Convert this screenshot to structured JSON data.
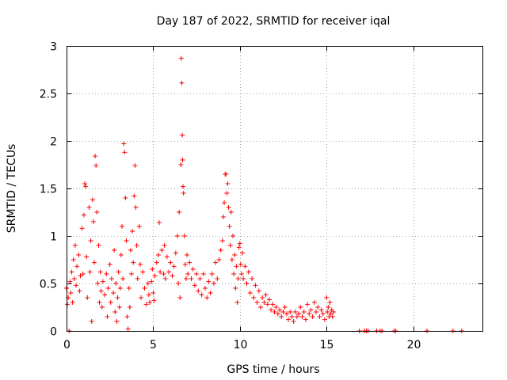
{
  "chart_data": {
    "type": "scatter",
    "title": "Day 187 of 2022, SRMTID for receiver iqal",
    "xlabel": "GPS time / hours",
    "ylabel": "SRMTID / TECUs",
    "xlim": [
      0,
      24
    ],
    "ylim": [
      0,
      3
    ],
    "xticks": [
      0,
      5,
      10,
      15,
      20
    ],
    "xtick_labels": [
      "0",
      "5",
      "10",
      "15",
      "20"
    ],
    "yticks": [
      0,
      0.5,
      1,
      1.5,
      2,
      2.5,
      3
    ],
    "ytick_labels": [
      "0",
      "0.5",
      "1",
      "1.5",
      "2",
      "2.5",
      "3"
    ],
    "grid": true,
    "legend": "none",
    "marker": "+",
    "color": "#ff0000",
    "series": [
      {
        "name": "SRMTID",
        "points": [
          [
            0.0,
            0.45
          ],
          [
            0.05,
            0.28
          ],
          [
            0.1,
            0.35
          ],
          [
            0.15,
            0.0
          ],
          [
            0.2,
            0.52
          ],
          [
            0.25,
            0.4
          ],
          [
            0.3,
            0.62
          ],
          [
            0.35,
            0.3
          ],
          [
            0.4,
            0.75
          ],
          [
            0.45,
            0.55
          ],
          [
            0.5,
            0.9
          ],
          [
            0.55,
            0.48
          ],
          [
            0.6,
            0.68
          ],
          [
            0.7,
            0.8
          ],
          [
            0.75,
            0.42
          ],
          [
            0.8,
            0.58
          ],
          [
            0.9,
            1.08
          ],
          [
            0.95,
            0.6
          ],
          [
            1.0,
            1.22
          ],
          [
            1.05,
            1.55
          ],
          [
            1.1,
            1.52
          ],
          [
            1.15,
            0.78
          ],
          [
            1.2,
            0.35
          ],
          [
            1.3,
            1.3
          ],
          [
            1.35,
            0.62
          ],
          [
            1.4,
            0.95
          ],
          [
            1.45,
            0.1
          ],
          [
            1.5,
            1.38
          ],
          [
            1.55,
            1.15
          ],
          [
            1.6,
            0.72
          ],
          [
            1.65,
            1.84
          ],
          [
            1.7,
            1.74
          ],
          [
            1.75,
            1.25
          ],
          [
            1.8,
            0.5
          ],
          [
            1.85,
            0.9
          ],
          [
            1.9,
            0.3
          ],
          [
            1.95,
            0.62
          ],
          [
            2.0,
            0.42
          ],
          [
            2.05,
            0.25
          ],
          [
            2.1,
            0.52
          ],
          [
            2.2,
            0.38
          ],
          [
            2.3,
            0.6
          ],
          [
            2.35,
            0.15
          ],
          [
            2.4,
            0.45
          ],
          [
            2.5,
            0.7
          ],
          [
            2.55,
            0.3
          ],
          [
            2.6,
            0.55
          ],
          [
            2.7,
            0.4
          ],
          [
            2.75,
            0.85
          ],
          [
            2.8,
            0.2
          ],
          [
            2.85,
            0.5
          ],
          [
            2.9,
            0.1
          ],
          [
            2.95,
            0.35
          ],
          [
            3.0,
            0.62
          ],
          [
            3.05,
            0.25
          ],
          [
            3.1,
            0.45
          ],
          [
            3.15,
            0.8
          ],
          [
            3.2,
            1.1
          ],
          [
            3.25,
            0.55
          ],
          [
            3.3,
            1.97
          ],
          [
            3.35,
            1.88
          ],
          [
            3.4,
            1.4
          ],
          [
            3.45,
            0.95
          ],
          [
            3.5,
            0.15
          ],
          [
            3.55,
            0.02
          ],
          [
            3.6,
            0.45
          ],
          [
            3.65,
            0.25
          ],
          [
            3.7,
            0.85
          ],
          [
            3.75,
            0.6
          ],
          [
            3.8,
            1.05
          ],
          [
            3.85,
            0.72
          ],
          [
            3.9,
            1.42
          ],
          [
            3.95,
            1.74
          ],
          [
            4.0,
            1.3
          ],
          [
            4.05,
            0.9
          ],
          [
            4.1,
            0.55
          ],
          [
            4.2,
            1.1
          ],
          [
            4.25,
            0.7
          ],
          [
            4.3,
            0.35
          ],
          [
            4.4,
            0.62
          ],
          [
            4.5,
            0.45
          ],
          [
            4.6,
            0.28
          ],
          [
            4.7,
            0.5
          ],
          [
            4.75,
            0.38
          ],
          [
            4.8,
            0.3
          ],
          [
            4.9,
            0.52
          ],
          [
            4.95,
            0.65
          ],
          [
            5.0,
            0.4
          ],
          [
            5.05,
            0.32
          ],
          [
            5.1,
            0.58
          ],
          [
            5.2,
            0.72
          ],
          [
            5.3,
            0.8
          ],
          [
            5.35,
            1.14
          ],
          [
            5.4,
            0.62
          ],
          [
            5.5,
            0.85
          ],
          [
            5.6,
            0.6
          ],
          [
            5.65,
            0.9
          ],
          [
            5.7,
            0.55
          ],
          [
            5.8,
            0.78
          ],
          [
            5.9,
            0.62
          ],
          [
            6.0,
            0.72
          ],
          [
            6.1,
            0.58
          ],
          [
            6.2,
            0.68
          ],
          [
            6.3,
            0.82
          ],
          [
            6.4,
            1.0
          ],
          [
            6.45,
            0.5
          ],
          [
            6.5,
            1.25
          ],
          [
            6.55,
            0.35
          ],
          [
            6.6,
            1.75
          ],
          [
            6.62,
            2.87
          ],
          [
            6.65,
            2.61
          ],
          [
            6.68,
            2.06
          ],
          [
            6.7,
            1.8
          ],
          [
            6.72,
            1.52
          ],
          [
            6.75,
            1.45
          ],
          [
            6.8,
            1.0
          ],
          [
            6.85,
            0.7
          ],
          [
            6.9,
            0.55
          ],
          [
            6.95,
            0.8
          ],
          [
            7.0,
            0.6
          ],
          [
            7.1,
            0.72
          ],
          [
            7.2,
            0.55
          ],
          [
            7.3,
            0.65
          ],
          [
            7.4,
            0.48
          ],
          [
            7.5,
            0.6
          ],
          [
            7.6,
            0.42
          ],
          [
            7.7,
            0.55
          ],
          [
            7.8,
            0.38
          ],
          [
            7.9,
            0.6
          ],
          [
            8.0,
            0.45
          ],
          [
            8.1,
            0.35
          ],
          [
            8.2,
            0.52
          ],
          [
            8.3,
            0.4
          ],
          [
            8.4,
            0.6
          ],
          [
            8.5,
            0.5
          ],
          [
            8.6,
            0.72
          ],
          [
            8.7,
            0.55
          ],
          [
            8.8,
            0.75
          ],
          [
            8.9,
            0.85
          ],
          [
            9.0,
            0.95
          ],
          [
            9.05,
            1.2
          ],
          [
            9.1,
            1.35
          ],
          [
            9.15,
            1.65
          ],
          [
            9.2,
            1.65
          ],
          [
            9.25,
            1.45
          ],
          [
            9.3,
            1.55
          ],
          [
            9.35,
            1.3
          ],
          [
            9.4,
            1.1
          ],
          [
            9.45,
            0.9
          ],
          [
            9.5,
            1.25
          ],
          [
            9.55,
            0.75
          ],
          [
            9.6,
            1.0
          ],
          [
            9.65,
            0.6
          ],
          [
            9.7,
            0.8
          ],
          [
            9.75,
            0.45
          ],
          [
            9.8,
            0.68
          ],
          [
            9.85,
            0.3
          ],
          [
            9.9,
            0.55
          ],
          [
            9.95,
            0.88
          ],
          [
            10.0,
            0.92
          ],
          [
            10.05,
            0.7
          ],
          [
            10.1,
            0.6
          ],
          [
            10.15,
            0.82
          ],
          [
            10.2,
            0.55
          ],
          [
            10.3,
            0.68
          ],
          [
            10.4,
            0.5
          ],
          [
            10.5,
            0.62
          ],
          [
            10.6,
            0.4
          ],
          [
            10.7,
            0.55
          ],
          [
            10.8,
            0.35
          ],
          [
            10.9,
            0.48
          ],
          [
            11.0,
            0.3
          ],
          [
            11.1,
            0.42
          ],
          [
            11.2,
            0.25
          ],
          [
            11.3,
            0.35
          ],
          [
            11.4,
            0.3
          ],
          [
            11.5,
            0.38
          ],
          [
            11.6,
            0.28
          ],
          [
            11.7,
            0.33
          ],
          [
            11.8,
            0.22
          ],
          [
            11.9,
            0.28
          ],
          [
            12.0,
            0.2
          ],
          [
            12.1,
            0.25
          ],
          [
            12.2,
            0.18
          ],
          [
            12.3,
            0.22
          ],
          [
            12.4,
            0.15
          ],
          [
            12.5,
            0.2
          ],
          [
            12.6,
            0.25
          ],
          [
            12.7,
            0.18
          ],
          [
            12.8,
            0.12
          ],
          [
            12.9,
            0.2
          ],
          [
            13.0,
            0.15
          ],
          [
            13.1,
            0.1
          ],
          [
            13.2,
            0.2
          ],
          [
            13.3,
            0.15
          ],
          [
            13.4,
            0.18
          ],
          [
            13.5,
            0.25
          ],
          [
            13.6,
            0.15
          ],
          [
            13.7,
            0.2
          ],
          [
            13.8,
            0.12
          ],
          [
            13.9,
            0.28
          ],
          [
            14.0,
            0.18
          ],
          [
            14.1,
            0.22
          ],
          [
            14.2,
            0.15
          ],
          [
            14.3,
            0.3
          ],
          [
            14.4,
            0.2
          ],
          [
            14.5,
            0.25
          ],
          [
            14.6,
            0.15
          ],
          [
            14.7,
            0.22
          ],
          [
            14.8,
            0.18
          ],
          [
            14.9,
            0.12
          ],
          [
            15.0,
            0.35
          ],
          [
            15.05,
            0.2
          ],
          [
            15.1,
            0.25
          ],
          [
            15.15,
            0.15
          ],
          [
            15.2,
            0.3
          ],
          [
            15.25,
            0.18
          ],
          [
            15.3,
            0.22
          ],
          [
            15.35,
            0.15
          ],
          [
            15.4,
            0.2
          ],
          [
            16.9,
            0.0
          ],
          [
            17.2,
            0.0
          ],
          [
            17.3,
            0.0
          ],
          [
            17.4,
            0.0
          ],
          [
            17.9,
            0.0
          ],
          [
            18.1,
            0.0
          ],
          [
            18.2,
            0.0
          ],
          [
            18.9,
            0.0
          ],
          [
            19.0,
            0.0
          ],
          [
            20.8,
            0.0
          ],
          [
            22.3,
            0.0
          ],
          [
            22.8,
            0.0
          ]
        ]
      }
    ]
  }
}
